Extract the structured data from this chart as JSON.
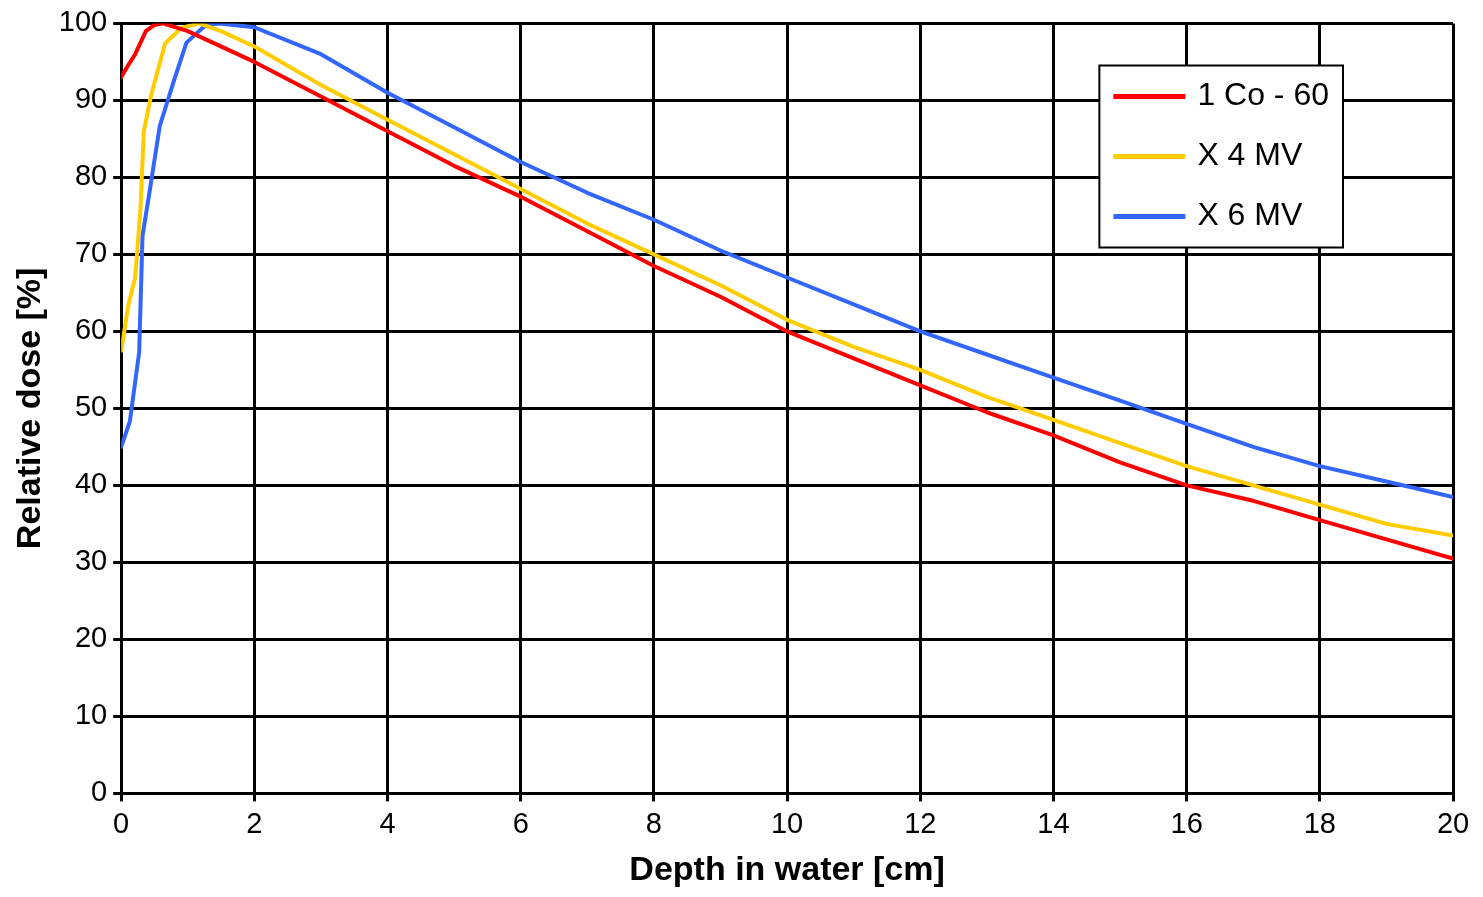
{
  "chart_data": {
    "type": "line",
    "xlabel": "Depth in water [cm]",
    "ylabel": "Relative dose [%]",
    "xlim": [
      0,
      20
    ],
    "xticks": [
      0,
      2,
      4,
      6,
      8,
      10,
      12,
      14,
      16,
      18,
      20
    ],
    "ylim": [
      0,
      100
    ],
    "yticks": [
      0,
      10,
      20,
      30,
      40,
      50,
      60,
      70,
      80,
      90,
      100
    ],
    "grid": true,
    "legend": "top right",
    "marker": "none",
    "line_style": "solid",
    "series": [
      {
        "name": "1 Co - 60",
        "color": "#ff0000",
        "x": [
          0,
          0.1,
          0.21,
          0.37,
          0.5,
          0.63,
          1,
          2,
          3,
          4,
          5,
          6,
          7,
          8,
          9,
          10,
          11,
          12,
          13,
          14,
          15,
          16,
          17,
          18,
          19,
          20
        ],
        "values": [
          93,
          94.5,
          96,
          99,
          99.8,
          100,
          99,
          95,
          90.5,
          86,
          81.5,
          77.5,
          73,
          68.5,
          64.5,
          60,
          56.5,
          53,
          49.5,
          46.5,
          43,
          40,
          38,
          35.5,
          33,
          30.5
        ]
      },
      {
        "name": "X 4 MV",
        "color": "#ffcc00",
        "x": [
          0,
          0.11,
          0.21,
          0.29,
          0.34,
          0.45,
          0.66,
          0.9,
          1.17,
          1.5,
          2,
          3,
          4,
          5,
          6,
          7,
          8,
          9,
          10,
          11,
          12,
          13,
          14,
          15,
          16,
          17,
          18,
          19,
          20
        ],
        "values": [
          57.5,
          63.5,
          67,
          76,
          86,
          90.7,
          97.4,
          99.4,
          100,
          99,
          97,
          92,
          87.5,
          83,
          78.5,
          74,
          70,
          66,
          61.5,
          58,
          55,
          51.5,
          48.5,
          45.5,
          42.5,
          40,
          37.5,
          35,
          33.5
        ]
      },
      {
        "name": "X 6 MV",
        "color": "#3366ff",
        "x": [
          0,
          0.13,
          0.27,
          0.32,
          0.42,
          0.58,
          0.79,
          0.98,
          1.27,
          1.47,
          2,
          3,
          4,
          5,
          6,
          7,
          8,
          9,
          10,
          11,
          12,
          13,
          14,
          15,
          16,
          17,
          18,
          19,
          20
        ],
        "values": [
          45,
          48.3,
          57.3,
          72.4,
          77.8,
          86.7,
          92.5,
          97.5,
          99.8,
          100,
          99.5,
          96,
          91,
          86.5,
          82,
          78,
          74.5,
          70.5,
          67,
          63.5,
          60,
          57,
          54,
          51,
          48,
          45,
          42.5,
          40.5,
          38.5
        ]
      }
    ]
  }
}
